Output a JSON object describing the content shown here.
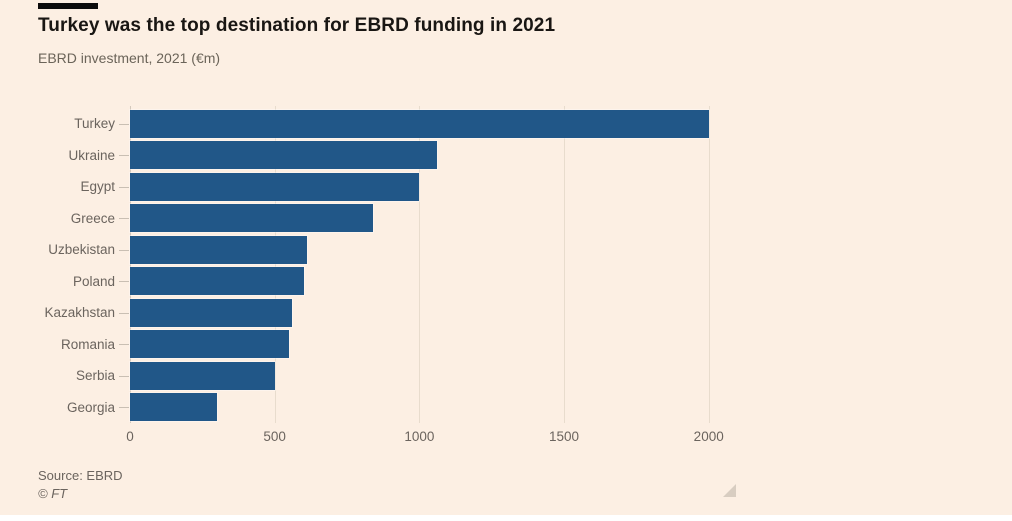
{
  "header": {
    "title": "Turkey was the top destination for EBRD funding in 2021",
    "subtitle": "EBRD investment, 2021 (€m)"
  },
  "chart_data": {
    "type": "bar",
    "orientation": "horizontal",
    "title": "Turkey was the top destination for EBRD funding in 2021",
    "subtitle": "EBRD investment, 2021 (€m)",
    "xlabel": "",
    "ylabel": "",
    "categories": [
      "Turkey",
      "Ukraine",
      "Egypt",
      "Greece",
      "Uzbekistan",
      "Poland",
      "Kazakhstan",
      "Romania",
      "Serbia",
      "Georgia"
    ],
    "values": [
      2000,
      1060,
      1000,
      840,
      610,
      600,
      560,
      550,
      500,
      300
    ],
    "x_ticks": [
      0,
      500,
      1000,
      1500,
      2000
    ],
    "x_tick_labels": [
      "0",
      "500",
      "1000",
      "1500",
      "2000"
    ],
    "xlim": [
      0,
      2160
    ],
    "grid": "vertical-gridlines-on",
    "legend": "none",
    "bar_color": "#215788",
    "background_color": "#fcefe3",
    "text_color": "#6b645e"
  },
  "footer": {
    "source": "Source: EBRD",
    "copyright": "© FT"
  }
}
